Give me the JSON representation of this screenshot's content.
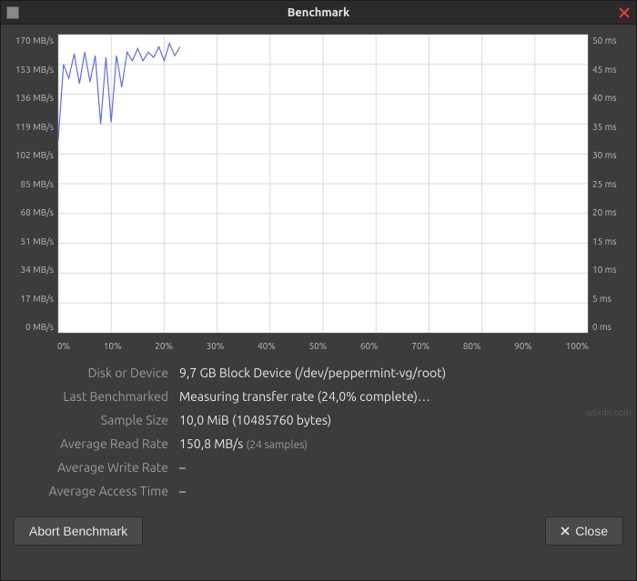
{
  "window": {
    "title": "Benchmark"
  },
  "chart": {
    "type": "line",
    "background_color": "#ffffff",
    "grid_color": "#d9d9d9",
    "line_color": "#5b6ee1",
    "line_width": 1.2,
    "xlim": [
      0,
      100
    ],
    "left_axis": {
      "unit": "MB/s",
      "ticks": [
        170,
        153,
        136,
        119,
        102,
        85,
        68,
        51,
        34,
        17,
        0
      ],
      "labels": [
        "170 MB/s",
        "153 MB/s",
        "136 MB/s",
        "119 MB/s",
        "102 MB/s",
        "85 MB/s",
        "68 MB/s",
        "51 MB/s",
        "34 MB/s",
        "17 MB/s",
        "0 MB/s"
      ],
      "ylim": [
        0,
        170
      ]
    },
    "right_axis": {
      "unit": "ms",
      "ticks": [
        50,
        45,
        40,
        35,
        30,
        25,
        20,
        15,
        10,
        5,
        0
      ],
      "labels": [
        "50 ms",
        "45 ms",
        "40 ms",
        "35 ms",
        "30 ms",
        "25 ms",
        "20 ms",
        "15 ms",
        "10 ms",
        "5 ms",
        "0 ms"
      ],
      "ylim": [
        0,
        50
      ]
    },
    "x_axis": {
      "labels": [
        "0%",
        "10%",
        "20%",
        "30%",
        "40%",
        "50%",
        "60%",
        "70%",
        "80%",
        "90%",
        "100%"
      ]
    },
    "read_rate_series": {
      "x": [
        0,
        1,
        2,
        3,
        4,
        5,
        6,
        7,
        8,
        9,
        10,
        11,
        12,
        13,
        14,
        15,
        16,
        17,
        18,
        19,
        20,
        21,
        22,
        23
      ],
      "y": [
        110,
        153,
        145,
        159,
        142,
        160,
        143,
        158,
        119,
        157,
        120,
        158,
        140,
        160,
        155,
        162,
        155,
        160,
        157,
        163,
        155,
        165,
        158,
        163
      ]
    },
    "tick_fontsize": 10,
    "tick_color": "#bdbdbd"
  },
  "info": {
    "disk_label": "Disk or Device",
    "disk_value": "9,7 GB Block Device (/dev/peppermint-vg/root)",
    "last_label": "Last Benchmarked",
    "last_value": "Measuring transfer rate (24,0% complete)…",
    "sample_label": "Sample Size",
    "sample_value": "10,0 MiB (10485760 bytes)",
    "read_label": "Average Read Rate",
    "read_value": "150,8 MB/s",
    "read_sub": "(24 samples)",
    "write_label": "Average Write Rate",
    "write_value": "–",
    "access_label": "Average Access Time",
    "access_value": "–"
  },
  "buttons": {
    "abort": "Abort Benchmark",
    "close": "Close"
  },
  "watermark": "wsxdn.com"
}
